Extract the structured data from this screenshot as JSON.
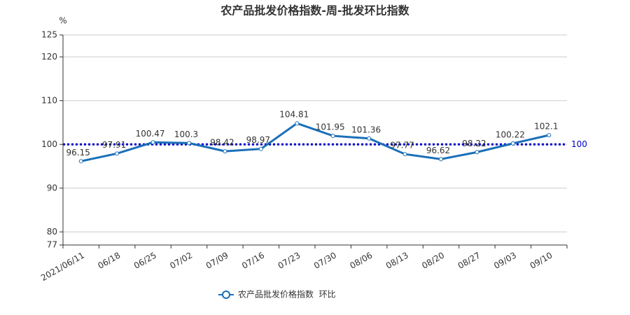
{
  "chart_data": {
    "type": "line",
    "title": "农产品批发价格指数-周-批发环比指数",
    "y_unit": "%",
    "categories": [
      "2021/06/11",
      "06/18",
      "06/25",
      "07/02",
      "07/09",
      "07/16",
      "07/23",
      "07/30",
      "08/06",
      "08/13",
      "08/20",
      "08/27",
      "09/03",
      "09/10"
    ],
    "series": [
      {
        "name": "农产品批发价格指数  环比",
        "color": "#1a6fb8",
        "values": [
          96.15,
          97.91,
          100.47,
          100.3,
          98.42,
          98.97,
          104.81,
          101.95,
          101.36,
          97.77,
          96.62,
          98.22,
          100.22,
          102.1
        ]
      }
    ],
    "ylim": [
      77,
      125
    ],
    "yticks": [
      77,
      80,
      90,
      100,
      110,
      120,
      125
    ],
    "grid": true,
    "reference_line": 100,
    "reference_color": "#0000cc",
    "legend": "bottom"
  }
}
